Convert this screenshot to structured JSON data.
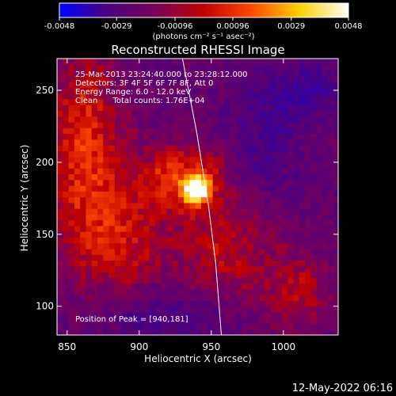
{
  "colorbar": {
    "ticks": [
      "-0.0048",
      "-0.0029",
      "-0.00096",
      "0.00096",
      "0.0029",
      "0.0048"
    ],
    "tick_values": [
      -0.0048,
      -0.0029,
      -0.00096,
      0.00096,
      0.0029,
      0.0048
    ],
    "min": -0.0048,
    "max": 0.0048,
    "units": "(photons cm⁻² s⁻¹ asec⁻²)",
    "colors": [
      "#0000ff",
      "#4b007f",
      "#7a0058",
      "#c00000",
      "#ff4a00",
      "#ffd200",
      "#ffffff"
    ]
  },
  "chart_data": {
    "type": "heatmap",
    "title": "Reconstructed RHESSI Image",
    "xlabel": "Heliocentric X (arcsec)",
    "ylabel": "Heliocentric Y (arcsec)",
    "xlim": [
      843,
      1038
    ],
    "ylim": [
      80,
      272
    ],
    "xticks": [
      850,
      900,
      950,
      1000
    ],
    "yticks": [
      100,
      150,
      200,
      250
    ],
    "x_tick_labels": [
      "850",
      "900",
      "950",
      "1000"
    ],
    "y_tick_labels": [
      "100",
      "150",
      "200",
      "250"
    ],
    "annotations": [
      "25-Mar-2013 23:24:40.000 to 23:28:12.000",
      "Detectors: 3F 4F 5F 6F 7F 8F, Att 0",
      "Energy Range: 6.0 - 12.0 keV",
      "Clean      Total counts: 1.76E+04"
    ],
    "peak_label": "Position of Peak = [940,181]",
    "peak": {
      "x": 940,
      "y": 181
    },
    "limb_curve": [
      [
        930,
        272
      ],
      [
        940,
        220
      ],
      [
        948,
        170
      ],
      [
        953,
        130
      ],
      [
        957,
        80
      ]
    ],
    "regions": [
      {
        "x": 940,
        "y": 181,
        "sx": 6,
        "sy": 6,
        "amp": 1.0
      },
      {
        "x": 930,
        "y": 190,
        "sx": 22,
        "sy": 16,
        "amp": 0.45
      },
      {
        "x": 862,
        "y": 215,
        "sx": 18,
        "sy": 45,
        "amp": 0.45
      },
      {
        "x": 885,
        "y": 145,
        "sx": 25,
        "sy": 30,
        "amp": 0.35
      },
      {
        "x": 960,
        "y": 140,
        "sx": 25,
        "sy": 30,
        "amp": 0.3
      },
      {
        "x": 1010,
        "y": 110,
        "sx": 15,
        "sy": 18,
        "amp": 0.3
      },
      {
        "x": 1010,
        "y": 250,
        "sx": 22,
        "sy": 14,
        "amp": -0.25
      },
      {
        "x": 920,
        "y": 95,
        "sx": 35,
        "sy": 14,
        "amp": -0.22
      },
      {
        "x": 985,
        "y": 205,
        "sx": 18,
        "sy": 25,
        "amp": -0.2
      }
    ]
  },
  "footer": {
    "timestamp": "12-May-2022 06:16"
  }
}
